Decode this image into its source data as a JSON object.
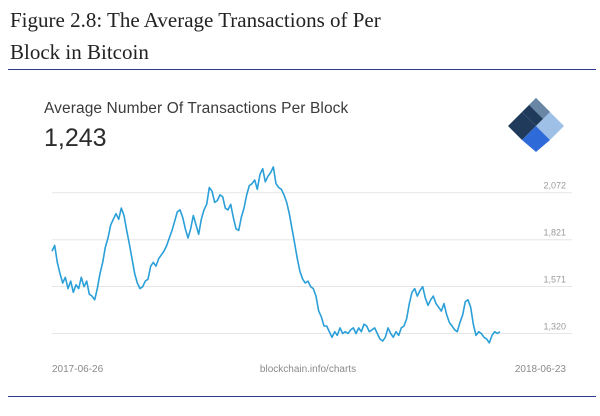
{
  "figure": {
    "caption_line1": "Figure 2.8: The Average Transactions of Per",
    "caption_line2": "Block in Bitcoin"
  },
  "header": {
    "title": "Average Number Of Transactions Per Block",
    "current_value": "1,243"
  },
  "footer": {
    "start_date": "2017-06-26",
    "source": "blockchain.info/charts",
    "end_date": "2018-06-23"
  },
  "colors": {
    "line": "#2a9fd8",
    "grid": "#e6e6e6",
    "logo_dark": "#1f3a5a",
    "logo_blue": "#2f6bd8",
    "logo_light": "#9ec0e6"
  },
  "chart_data": {
    "type": "line",
    "title": "Average Number Of Transactions Per Block",
    "xlabel": "",
    "ylabel": "",
    "x_start": "2017-06-26",
    "x_end": "2018-06-23",
    "y_ticks": [
      1320,
      1571,
      1821,
      2072
    ],
    "y_tick_labels": [
      "1,320",
      "1,571",
      "1,821",
      "2,072"
    ],
    "ylim": [
      1200,
      2300
    ],
    "grid": true,
    "series": [
      {
        "values": [
          1760,
          1790,
          1700,
          1640,
          1590,
          1620,
          1560,
          1600,
          1540,
          1580,
          1560,
          1620,
          1570,
          1600,
          1530,
          1520,
          1500,
          1560,
          1640,
          1700,
          1780,
          1830,
          1900,
          1930,
          1960,
          1930,
          1990,
          1950,
          1870,
          1800,
          1720,
          1640,
          1590,
          1560,
          1570,
          1600,
          1610,
          1680,
          1700,
          1680,
          1720,
          1740,
          1760,
          1790,
          1830,
          1870,
          1920,
          1970,
          1980,
          1940,
          1880,
          1830,
          1880,
          1950,
          1900,
          1850,
          1930,
          1980,
          2010,
          2100,
          2080,
          2020,
          2030,
          2060,
          2050,
          1990,
          1980,
          2010,
          1940,
          1880,
          1870,
          1940,
          1990,
          2060,
          2110,
          2120,
          2140,
          2090,
          2170,
          2200,
          2130,
          2160,
          2180,
          2210,
          2120,
          2100,
          2090,
          2060,
          2020,
          1960,
          1880,
          1800,
          1720,
          1650,
          1610,
          1590,
          1600,
          1570,
          1560,
          1520,
          1440,
          1410,
          1360,
          1360,
          1330,
          1300,
          1330,
          1310,
          1350,
          1320,
          1330,
          1320,
          1340,
          1350,
          1320,
          1350,
          1330,
          1370,
          1360,
          1330,
          1340,
          1350,
          1320,
          1290,
          1280,
          1300,
          1350,
          1320,
          1300,
          1330,
          1310,
          1350,
          1360,
          1400,
          1480,
          1540,
          1560,
          1520,
          1550,
          1570,
          1510,
          1470,
          1500,
          1520,
          1480,
          1460,
          1440,
          1480,
          1420,
          1380,
          1360,
          1340,
          1330,
          1380,
          1420,
          1490,
          1500,
          1460,
          1370,
          1310,
          1330,
          1320,
          1300,
          1290,
          1270,
          1310,
          1330,
          1320,
          1330
        ]
      }
    ]
  }
}
